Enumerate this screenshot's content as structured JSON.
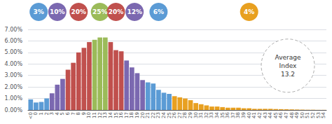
{
  "chart_data": {
    "type": "bar",
    "categories": [
      "<0",
      "0",
      "1",
      "2",
      "3",
      "4",
      "5",
      "6",
      "7",
      "8",
      "9",
      "10",
      "11",
      "12",
      "13",
      "14",
      "15",
      "16",
      "17",
      "18",
      "19",
      "20",
      "21",
      "22",
      "23",
      "24",
      "25",
      "26",
      "27",
      "28",
      "29",
      "30",
      "31",
      "32",
      "33",
      "34",
      "35",
      "36",
      "37",
      "38",
      "39",
      "40",
      "41",
      "42",
      "43",
      "44",
      "45",
      "46",
      "47",
      "48",
      "49",
      "50",
      "51",
      "52",
      "53",
      "54"
    ],
    "values": [
      0.0092,
      0.0065,
      0.007,
      0.01,
      0.0145,
      0.022,
      0.027,
      0.035,
      0.041,
      0.05,
      0.054,
      0.059,
      0.061,
      0.063,
      0.063,
      0.059,
      0.052,
      0.051,
      0.043,
      0.037,
      0.032,
      0.026,
      0.024,
      0.023,
      0.0175,
      0.015,
      0.014,
      0.012,
      0.011,
      0.01,
      0.0085,
      0.006,
      0.005,
      0.004,
      0.003,
      0.003,
      0.0025,
      0.002,
      0.002,
      0.002,
      0.0015,
      0.0015,
      0.001,
      0.001,
      0.001,
      0.001,
      0.0008,
      0.0007,
      0.0006,
      0.0005,
      0.0004,
      0.0003,
      0.0002,
      0.0002,
      0.0001,
      0.0001
    ],
    "colors": [
      "#5b9bd5",
      "#5b9bd5",
      "#5b9bd5",
      "#5b9bd5",
      "#7b68b0",
      "#7b68b0",
      "#7b68b0",
      "#c0504d",
      "#c0504d",
      "#c0504d",
      "#c0504d",
      "#c0504d",
      "#9bbb59",
      "#9bbb59",
      "#9bbb59",
      "#c0504d",
      "#c0504d",
      "#c0504d",
      "#7b68b0",
      "#7b68b0",
      "#7b68b0",
      "#7b68b0",
      "#5b9bd5",
      "#5b9bd5",
      "#5b9bd5",
      "#5b9bd5",
      "#5b9bd5",
      "#e8a020",
      "#e8a020",
      "#e8a020",
      "#e8a020",
      "#e8a020",
      "#e8a020",
      "#e8a020",
      "#e8a020",
      "#e8a020",
      "#e8a020",
      "#e8a020",
      "#e8a020",
      "#e8a020",
      "#e8a020",
      "#e8a020",
      "#e8a020",
      "#e8a020",
      "#e8a020",
      "#e8a020",
      "#e8a020",
      "#e8a020",
      "#e8a020",
      "#e8a020",
      "#e8a020",
      "#e8a020",
      "#e8a020",
      "#e8a020",
      "#e8a020",
      "#e8a020"
    ],
    "ylim": [
      0,
      0.07
    ],
    "yticks": [
      {
        "value": 0.0,
        "label": "0.00%"
      },
      {
        "value": 0.01,
        "label": "1.00%"
      },
      {
        "value": 0.02,
        "label": "2.00%"
      },
      {
        "value": 0.03,
        "label": "3.00%"
      },
      {
        "value": 0.04,
        "label": "4.00%"
      },
      {
        "value": 0.05,
        "label": "5.00%"
      },
      {
        "value": 0.06,
        "label": "6.00%"
      },
      {
        "value": 0.07,
        "label": "7.00%"
      }
    ],
    "grid": true,
    "annotations": [
      {
        "text": "3%",
        "color": "#5b9bd5"
      },
      {
        "text": "10%",
        "color": "#7b68b0"
      },
      {
        "text": "20%",
        "color": "#c0504d"
      },
      {
        "text": "25%",
        "color": "#9bbb59"
      },
      {
        "text": "20%",
        "color": "#c0504d"
      },
      {
        "text": "12%",
        "color": "#7b68b0"
      },
      {
        "text": "6%",
        "color": "#5b9bd5"
      },
      {
        "text": "4%",
        "color": "#e8a020"
      },
      {
        "text": "Average\nIndex\n13.2"
      }
    ]
  }
}
